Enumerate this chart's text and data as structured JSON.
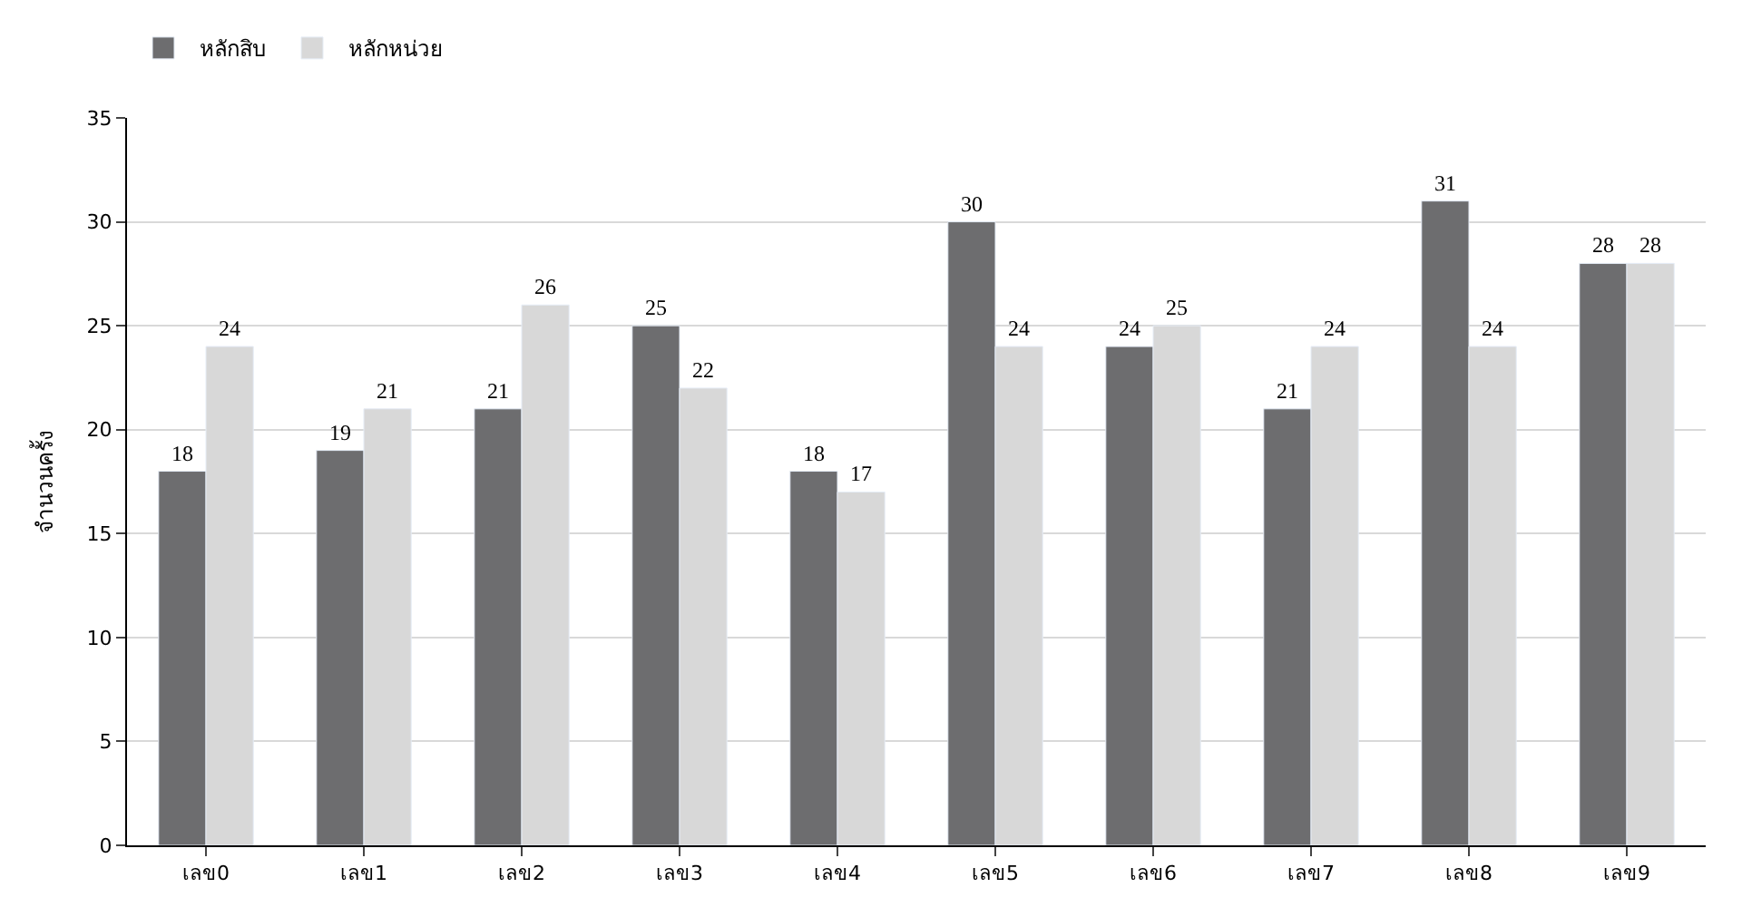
{
  "chart_data": {
    "type": "bar",
    "ylabel": "จำนวนครั้ง",
    "categories": [
      "เลข0",
      "เลข1",
      "เลข2",
      "เลข3",
      "เลข4",
      "เลข5",
      "เลข6",
      "เลข7",
      "เลข8",
      "เลข9"
    ],
    "series": [
      {
        "name": "หลักสิบ",
        "color": "#6d6d6f",
        "values": [
          18,
          19,
          21,
          25,
          18,
          30,
          24,
          21,
          31,
          28
        ]
      },
      {
        "name": "หลักหน่วย",
        "color": "#d8d8d8",
        "values": [
          24,
          21,
          26,
          22,
          17,
          24,
          25,
          24,
          24,
          28
        ]
      }
    ],
    "ylim": [
      0,
      35
    ],
    "yticks": [
      0,
      5,
      10,
      15,
      20,
      25,
      30,
      35
    ],
    "grid": "y",
    "legend": "top left",
    "data_labels": true
  }
}
